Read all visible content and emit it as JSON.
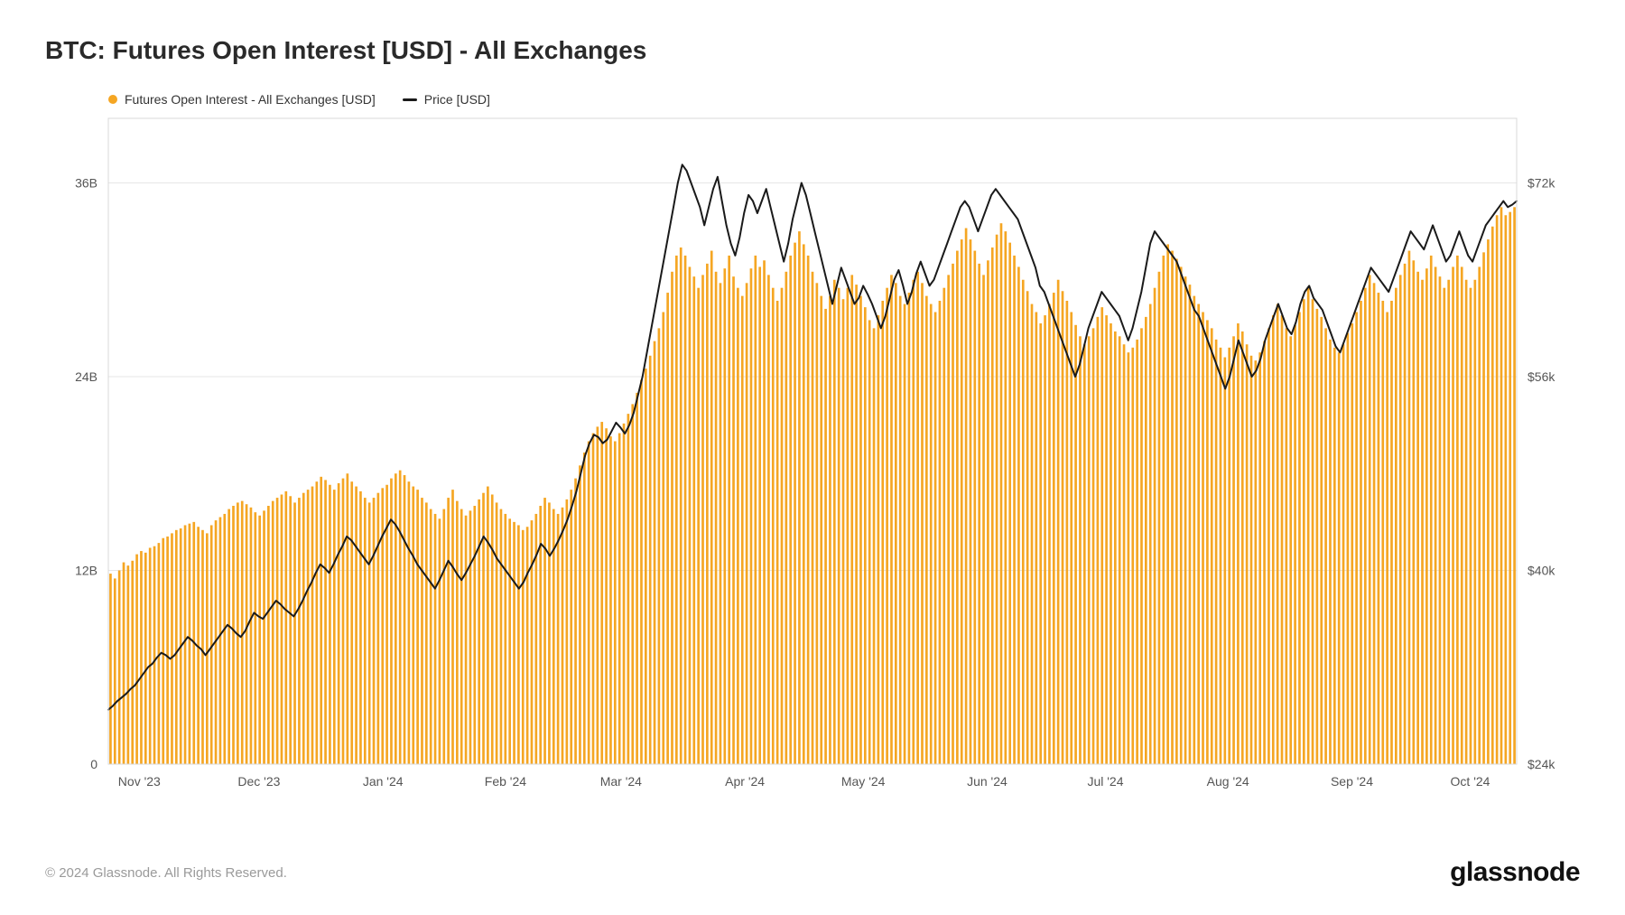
{
  "title": "BTC: Futures Open Interest [USD] - All Exchanges",
  "legend": {
    "bars": "Futures Open Interest - All Exchanges [USD]",
    "line": "Price [USD]"
  },
  "footer": {
    "copyright": "© 2024 Glassnode. All Rights Reserved.",
    "brand": "glassnode"
  },
  "chart": {
    "type": "bar+line",
    "background_color": "#ffffff",
    "plot_border_color": "#d8d8d8",
    "grid_color": "#e6e6e6",
    "bar_color": "#f5a623",
    "line_color": "#1a1a1a",
    "line_width": 2,
    "bar_width_ratio": 0.55,
    "title_fontsize": 28,
    "label_fontsize": 14,
    "left_axis": {
      "min": 0,
      "max": 40,
      "ticks": [
        0,
        12,
        24,
        36
      ],
      "tick_labels": [
        "0",
        "12B",
        "24B",
        "36B"
      ]
    },
    "right_axis": {
      "min": 24,
      "max": 77.33,
      "ticks": [
        24,
        40,
        56,
        72
      ],
      "tick_labels": [
        "$24k",
        "$40k",
        "$56k",
        "$72k"
      ]
    },
    "x_ticks": [
      {
        "pos": 0.022,
        "label": "Nov '23"
      },
      {
        "pos": 0.107,
        "label": "Dec '23"
      },
      {
        "pos": 0.195,
        "label": "Jan '24"
      },
      {
        "pos": 0.282,
        "label": "Feb '24"
      },
      {
        "pos": 0.364,
        "label": "Mar '24"
      },
      {
        "pos": 0.452,
        "label": "Apr '24"
      },
      {
        "pos": 0.536,
        "label": "May '24"
      },
      {
        "pos": 0.624,
        "label": "Jun '24"
      },
      {
        "pos": 0.708,
        "label": "Jul '24"
      },
      {
        "pos": 0.795,
        "label": "Aug '24"
      },
      {
        "pos": 0.883,
        "label": "Sep '24"
      },
      {
        "pos": 0.967,
        "label": "Oct '24"
      }
    ],
    "bars": [
      11.8,
      11.5,
      12,
      12.5,
      12.3,
      12.6,
      13,
      13.2,
      13.1,
      13.4,
      13.5,
      13.7,
      14,
      14.1,
      14.3,
      14.5,
      14.6,
      14.8,
      14.9,
      15,
      14.7,
      14.5,
      14.3,
      14.8,
      15.1,
      15.3,
      15.5,
      15.8,
      16,
      16.2,
      16.3,
      16.1,
      15.9,
      15.6,
      15.4,
      15.7,
      16,
      16.3,
      16.5,
      16.7,
      16.9,
      16.6,
      16.2,
      16.5,
      16.8,
      17,
      17.2,
      17.5,
      17.8,
      17.6,
      17.3,
      17,
      17.4,
      17.7,
      18,
      17.5,
      17.2,
      16.9,
      16.5,
      16.2,
      16.5,
      16.8,
      17.1,
      17.3,
      17.7,
      18,
      18.2,
      17.9,
      17.5,
      17.2,
      17,
      16.5,
      16.2,
      15.8,
      15.5,
      15.2,
      15.8,
      16.5,
      17,
      16.3,
      15.8,
      15.4,
      15.7,
      16,
      16.4,
      16.8,
      17.2,
      16.7,
      16.2,
      15.8,
      15.5,
      15.2,
      15,
      14.8,
      14.5,
      14.7,
      15.1,
      15.5,
      16,
      16.5,
      16.2,
      15.8,
      15.5,
      15.9,
      16.4,
      17,
      17.7,
      18.5,
      19.3,
      20,
      20.5,
      20.9,
      21.2,
      20.8,
      20.3,
      20,
      20.5,
      21.1,
      21.7,
      22.3,
      23,
      23.8,
      24.5,
      25.3,
      26.2,
      27,
      28,
      29.2,
      30.5,
      31.5,
      32,
      31.5,
      30.8,
      30.2,
      29.5,
      30.3,
      31,
      31.8,
      30.5,
      29.8,
      30.7,
      31.5,
      30.2,
      29.5,
      29,
      29.8,
      30.7,
      31.5,
      30.8,
      31.2,
      30.3,
      29.5,
      28.7,
      29.5,
      30.5,
      31.5,
      32.3,
      33,
      32.2,
      31.5,
      30.5,
      29.8,
      29,
      28.2,
      29,
      30,
      29.5,
      28.8,
      29.5,
      30.3,
      29.7,
      29,
      28.3,
      27.5,
      27,
      27.8,
      28.7,
      29.5,
      30.3,
      29.8,
      29,
      28.5,
      29.2,
      30,
      30.5,
      29.8,
      29,
      28.5,
      28,
      28.7,
      29.5,
      30.3,
      31,
      31.8,
      32.5,
      33.2,
      32.5,
      31.8,
      31,
      30.3,
      31.2,
      32,
      32.8,
      33.5,
      33,
      32.3,
      31.5,
      30.8,
      30,
      29.3,
      28.5,
      28,
      27.3,
      27.8,
      28.5,
      29.2,
      30,
      29.3,
      28.7,
      28,
      27.2,
      26.5,
      26,
      26.5,
      27,
      27.7,
      28.3,
      27.8,
      27.3,
      26.8,
      26.5,
      26,
      25.5,
      25.8,
      26.3,
      27,
      27.7,
      28.5,
      29.5,
      30.5,
      31.5,
      32.2,
      31.8,
      31.3,
      30.8,
      30.2,
      29.7,
      29,
      28.5,
      28,
      27.5,
      27,
      26.3,
      25.8,
      25.2,
      25.8,
      26.5,
      27.3,
      26.8,
      26,
      25.3,
      25,
      25.5,
      26.2,
      27,
      27.8,
      28.5,
      27.8,
      27,
      26.5,
      27.2,
      28,
      28.8,
      29.5,
      28.8,
      28.2,
      27.7,
      27,
      26.3,
      25.8,
      25.5,
      26,
      26.7,
      27.3,
      28,
      28.7,
      29.5,
      30.3,
      29.8,
      29.2,
      28.7,
      28,
      28.7,
      29.5,
      30.3,
      31,
      31.8,
      31.2,
      30.5,
      30,
      30.7,
      31.5,
      30.8,
      30.2,
      29.5,
      30,
      30.8,
      31.5,
      30.8,
      30,
      29.5,
      30,
      30.8,
      31.7,
      32.5,
      33.3,
      34,
      34.5,
      34,
      34.2,
      34.5
    ],
    "line": [
      28.5,
      28.8,
      29.2,
      29.5,
      29.8,
      30.2,
      30.5,
      31,
      31.5,
      32,
      32.3,
      32.8,
      33.2,
      33,
      32.7,
      33,
      33.5,
      34,
      34.5,
      34.2,
      33.8,
      33.5,
      33,
      33.5,
      34,
      34.5,
      35,
      35.5,
      35.2,
      34.8,
      34.5,
      35,
      35.8,
      36.5,
      36.2,
      36,
      36.5,
      37,
      37.5,
      37.2,
      36.8,
      36.5,
      36.2,
      36.8,
      37.5,
      38.3,
      39,
      39.8,
      40.5,
      40.2,
      39.8,
      40.5,
      41.3,
      42,
      42.8,
      42.5,
      42,
      41.5,
      41,
      40.5,
      41.2,
      42,
      42.8,
      43.5,
      44.2,
      43.8,
      43.2,
      42.5,
      41.8,
      41.2,
      40.5,
      40,
      39.5,
      39,
      38.5,
      39.2,
      40,
      40.8,
      40.3,
      39.7,
      39.2,
      39.8,
      40.5,
      41.2,
      42,
      42.8,
      42.3,
      41.7,
      41,
      40.5,
      40,
      39.5,
      39,
      38.5,
      39,
      39.8,
      40.5,
      41.3,
      42.2,
      41.8,
      41.2,
      41.8,
      42.5,
      43.3,
      44.2,
      45.3,
      46.5,
      48,
      49.5,
      50.5,
      51.2,
      51,
      50.5,
      50.8,
      51.5,
      52.2,
      51.8,
      51.3,
      52,
      53,
      54.5,
      56,
      58,
      60,
      62,
      64,
      66,
      68,
      70,
      72,
      73.5,
      73,
      72,
      71,
      70,
      68.5,
      70,
      71.5,
      72.5,
      70.5,
      68.5,
      67,
      66,
      67.5,
      69.5,
      71,
      70.5,
      69.5,
      70.5,
      71.5,
      70,
      68.5,
      67,
      65.5,
      67,
      69,
      70.5,
      72,
      71,
      69.5,
      68,
      66.5,
      65,
      63.5,
      62,
      63.5,
      65,
      64,
      63,
      62,
      62.5,
      63.5,
      62.8,
      62,
      61,
      60,
      61,
      62.5,
      64,
      64.8,
      63.5,
      62,
      63,
      64.5,
      65.5,
      64.5,
      63.5,
      64,
      65,
      66,
      67,
      68,
      69,
      70,
      70.5,
      70,
      69,
      68,
      69,
      70,
      71,
      71.5,
      71,
      70.5,
      70,
      69.5,
      69,
      68,
      67,
      66,
      65,
      63.5,
      63,
      62,
      61,
      60,
      59,
      58,
      57,
      56,
      57,
      58.5,
      60,
      61,
      62,
      63,
      62.5,
      62,
      61.5,
      61,
      60,
      59,
      60,
      61.5,
      63,
      65,
      67,
      68,
      67.5,
      67,
      66.5,
      66,
      65.5,
      64.5,
      63.5,
      62.5,
      61.5,
      61,
      60,
      59,
      58,
      57,
      56,
      55,
      56,
      57.5,
      59,
      58,
      57,
      56,
      56.5,
      57.5,
      59,
      60,
      61,
      62,
      61,
      60,
      59.5,
      60.5,
      62,
      63,
      63.5,
      62.5,
      62,
      61.5,
      60.5,
      59.5,
      58.5,
      58,
      59,
      60,
      61,
      62,
      63,
      64,
      65,
      64.5,
      64,
      63.5,
      63,
      64,
      65,
      66,
      67,
      68,
      67.5,
      67,
      66.5,
      67.5,
      68.5,
      67.5,
      66.5,
      65.5,
      66,
      67,
      68,
      67,
      66,
      65.5,
      66.5,
      67.5,
      68.5,
      69,
      69.5,
      70,
      70.5,
      70,
      70.2,
      70.5
    ]
  }
}
